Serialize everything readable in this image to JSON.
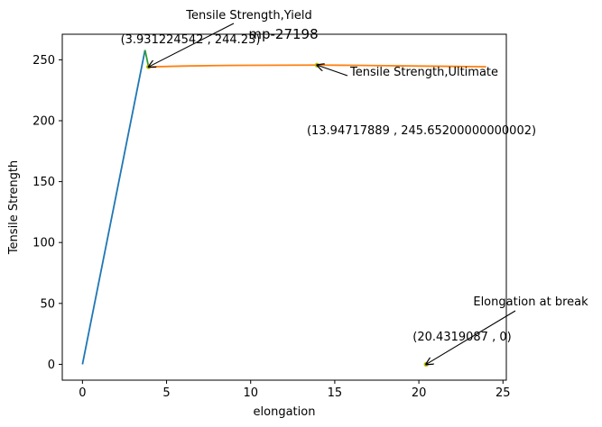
{
  "chart_data": {
    "type": "line",
    "title": "mp-27198",
    "xlabel": "elongation",
    "ylabel": "Tensile Strength",
    "xlim": [
      -1.2,
      25.2
    ],
    "ylim": [
      -13,
      271
    ],
    "xticks": [
      0,
      5,
      10,
      15,
      20,
      25
    ],
    "yticks": [
      0,
      50,
      100,
      150,
      200,
      250
    ],
    "grid": false,
    "series": [
      {
        "color": "#1f77b4",
        "x": [
          0,
          3.72
        ],
        "y": [
          0,
          258
        ]
      },
      {
        "color": "#2ca02c",
        "x": [
          3.72,
          3.93
        ],
        "y": [
          258,
          244.2
        ]
      },
      {
        "color": "#ff7f0e",
        "x": [
          3.93,
          6,
          8,
          10,
          12,
          13.95,
          16,
          18,
          20,
          22,
          24
        ],
        "y": [
          244.2,
          244.9,
          245.3,
          245.5,
          245.6,
          245.65,
          245.5,
          245.2,
          244.9,
          244.6,
          244.3
        ]
      }
    ],
    "markers": [
      {
        "x": 3.931224542,
        "y": 244.23,
        "color": "#bfbf00"
      },
      {
        "x": 13.94717889,
        "y": 245.652,
        "color": "#bfbf00"
      },
      {
        "x": 20.4319087,
        "y": 0,
        "color": "#bfbf00"
      }
    ],
    "annotations": [
      {
        "name": "yield",
        "label": "Tensile Strength,Yield",
        "value_text": "(3.931224542 , 244.23)",
        "arrow_to": [
          3.931224542,
          244.23
        ]
      },
      {
        "name": "ultimate",
        "label": "Tensile Strength,Ultimate",
        "value_text": "(13.94717889 , 245.65200000000002)",
        "arrow_to": [
          13.94717889,
          245.652
        ]
      },
      {
        "name": "break",
        "label": "Elongation at break",
        "value_text": "(20.4319087 , 0)",
        "arrow_to": [
          20.4319087,
          0
        ]
      }
    ]
  }
}
